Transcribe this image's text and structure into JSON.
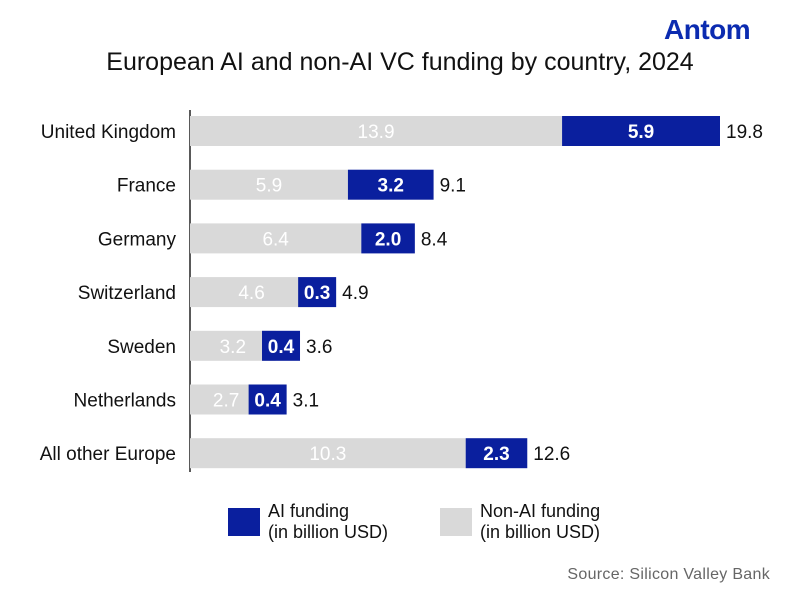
{
  "logo": "Antom",
  "chart_data": {
    "type": "bar",
    "orientation": "horizontal",
    "stacked": true,
    "title": "European AI and non-AI VC funding by country, 2024",
    "categories": [
      "United Kingdom",
      "France",
      "Germany",
      "Switzerland",
      "Sweden",
      "Netherlands",
      "All other Europe"
    ],
    "series": [
      {
        "name": "Non-AI funding (in billion USD)",
        "color": "#d9d9d9",
        "values": [
          13.9,
          5.9,
          6.4,
          4.6,
          3.2,
          2.7,
          10.3
        ]
      },
      {
        "name": "AI funding (in billion USD)",
        "color": "#0a1f9e",
        "values": [
          5.9,
          3.2,
          2.0,
          0.3,
          0.4,
          0.4,
          2.3
        ]
      }
    ],
    "totals": [
      19.8,
      9.1,
      8.4,
      4.9,
      3.6,
      3.1,
      12.6
    ],
    "grid": false,
    "legend_position": "bottom"
  },
  "legend": {
    "ai_line1": "AI funding",
    "ai_line2": "(in billion USD)",
    "nonai_line1": "Non-AI funding",
    "nonai_line2": "(in billion USD)"
  },
  "source": "Source: Silicon Valley Bank"
}
